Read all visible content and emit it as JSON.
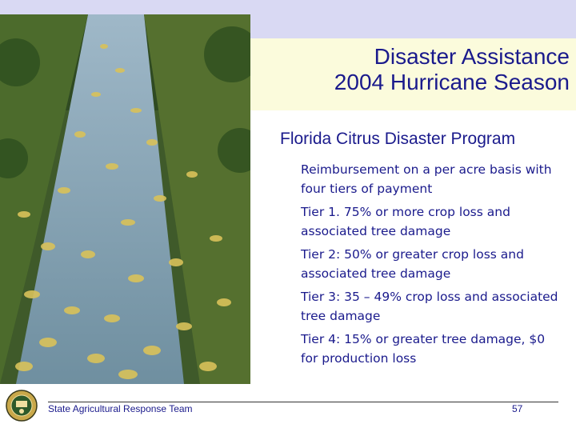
{
  "slide": {
    "title_line1": "Disaster Assistance",
    "title_line2": "2004 Hurricane Season",
    "subtitle": "Florida Citrus Disaster Program",
    "bullets": [
      "Reimbursement on a per acre basis with four tiers of payment",
      "Tier 1. 75% or more crop loss and associated tree damage",
      "Tier 2: 50% or greater crop loss and associated tree damage",
      "Tier 3:  35 – 49% crop loss and associated tree damage",
      "Tier 4:  15% or greater tree damage, $0 for production loss"
    ]
  },
  "footer": {
    "org": "State Agricultural Response Team",
    "page": "57"
  },
  "colors": {
    "text": "#1a1a8c",
    "top_band": "#d9d9f3",
    "title_band": "#fbfbdc"
  }
}
